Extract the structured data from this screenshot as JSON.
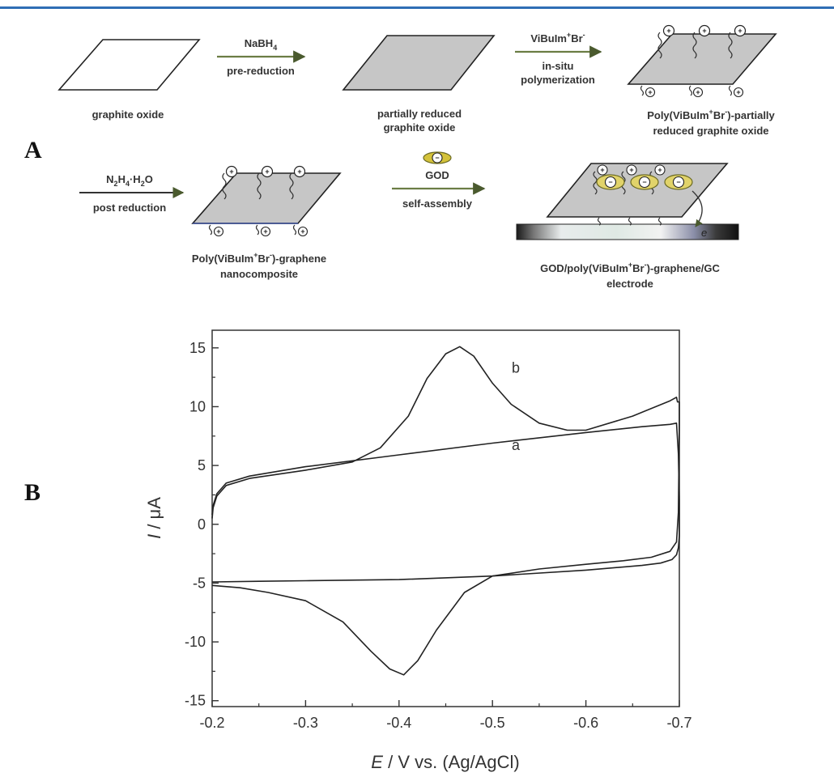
{
  "panel_a": {
    "letter": "A",
    "row1": {
      "step1": {
        "reagent": "NaBH",
        "reagent_sub": "4",
        "condition": "pre-reduction"
      },
      "step2": {
        "reagent": "ViBuIm",
        "reagent_sup1": "+",
        "reagent_mid": "Br",
        "reagent_sup2": "-",
        "condition1": "in-situ",
        "condition2": "polymerization"
      },
      "item1": "graphite oxide",
      "item2_line1": "partially reduced",
      "item2_line2": "graphite oxide",
      "item3_line1_a": "Poly(ViBuIm",
      "item3_line1_sup1": "+",
      "item3_line1_b": "Br",
      "item3_line1_sup2": "-",
      "item3_line1_c": ")-partially",
      "item3_line2": "reduced graphite oxide"
    },
    "row2": {
      "step3": {
        "reagent_a": "N",
        "reagent_sub1": "2",
        "reagent_b": "H",
        "reagent_sub2": "4",
        "reagent_c": "·H",
        "reagent_sub3": "2",
        "reagent_d": "O",
        "condition": "post reduction"
      },
      "step4": {
        "reagent": "GOD",
        "condition": "self-assembly"
      },
      "item4_line1_a": "Poly(ViBuIm",
      "item4_line1_sup1": "+",
      "item4_line1_b": "Br",
      "item4_line1_sup2": "-",
      "item4_line1_c": ")-graphene",
      "item4_line2": "nanocomposite",
      "item5_line1_a": "GOD/poly(ViBuIm",
      "item5_line1_sup1": "+",
      "item5_line1_b": "Br",
      "item5_line1_sup2": "-",
      "item5_line1_c": ")-graphene/GC",
      "item5_line2": "electrode",
      "electron": "e",
      "plus_sign": "+",
      "minus_sign": "−"
    },
    "colors": {
      "sheet": "#c6c6c6",
      "arrow": "#556b3a",
      "god": "#c9b52a"
    }
  },
  "panel_b": {
    "letter": "B",
    "chart_data": {
      "type": "line",
      "xlabel_italic": "E",
      "xlabel_rest": " / V vs. (Ag/AgCl)",
      "ylabel_italic": "I",
      "ylabel_rest": " / μA",
      "xlim": [
        -0.2,
        -0.7
      ],
      "ylim": [
        -15.5,
        16.5
      ],
      "x_ticks": [
        "-0.2",
        "-0.3",
        "-0.4",
        "-0.5",
        "-0.6",
        "-0.7"
      ],
      "x_tick_values": [
        -0.2,
        -0.3,
        -0.4,
        -0.5,
        -0.6,
        -0.7
      ],
      "y_ticks": [
        "15",
        "10",
        "5",
        "0",
        "-5",
        "-10",
        "-15"
      ],
      "y_tick_values": [
        15,
        10,
        5,
        0,
        -5,
        -10,
        -15
      ],
      "annotations": [
        {
          "text": "a",
          "x": -0.525,
          "y": 6.3
        },
        {
          "text": "b",
          "x": -0.525,
          "y": 12.9
        }
      ],
      "series": [
        {
          "label": "a",
          "x": [
            -0.2,
            -0.201,
            -0.205,
            -0.215,
            -0.24,
            -0.3,
            -0.4,
            -0.5,
            -0.6,
            -0.66,
            -0.69,
            -0.697,
            -0.699,
            -0.7,
            -0.7,
            -0.699,
            -0.697,
            -0.692,
            -0.68,
            -0.66,
            -0.6,
            -0.5,
            -0.4,
            -0.3,
            -0.25,
            -0.2
          ],
          "y": [
            0.8,
            1.6,
            2.6,
            3.5,
            4.1,
            4.9,
            5.9,
            6.9,
            7.8,
            8.3,
            8.5,
            8.6,
            6.0,
            2.0,
            -1.0,
            -2.0,
            -2.6,
            -3.0,
            -3.3,
            -3.5,
            -3.9,
            -4.4,
            -4.7,
            -4.8,
            -4.85,
            -4.9
          ]
        },
        {
          "label": "b",
          "x": [
            -0.2,
            -0.201,
            -0.205,
            -0.215,
            -0.24,
            -0.3,
            -0.35,
            -0.38,
            -0.41,
            -0.43,
            -0.45,
            -0.465,
            -0.48,
            -0.5,
            -0.52,
            -0.55,
            -0.58,
            -0.6,
            -0.65,
            -0.69,
            -0.697,
            -0.698,
            -0.7,
            -0.7,
            -0.699,
            -0.697,
            -0.69,
            -0.67,
            -0.64,
            -0.6,
            -0.55,
            -0.5,
            -0.47,
            -0.44,
            -0.42,
            -0.405,
            -0.39,
            -0.37,
            -0.34,
            -0.3,
            -0.26,
            -0.23,
            -0.2
          ],
          "y": [
            0.5,
            1.4,
            2.4,
            3.3,
            3.9,
            4.6,
            5.3,
            6.5,
            9.2,
            12.4,
            14.5,
            15.1,
            14.3,
            12.0,
            10.2,
            8.6,
            8.0,
            8.0,
            9.2,
            10.5,
            10.8,
            10.4,
            10.4,
            8.5,
            1.0,
            -1.5,
            -2.3,
            -2.8,
            -3.1,
            -3.4,
            -3.8,
            -4.4,
            -5.8,
            -9.0,
            -11.6,
            -12.8,
            -12.3,
            -10.8,
            -8.3,
            -6.5,
            -5.8,
            -5.4,
            -5.2
          ]
        }
      ]
    }
  }
}
